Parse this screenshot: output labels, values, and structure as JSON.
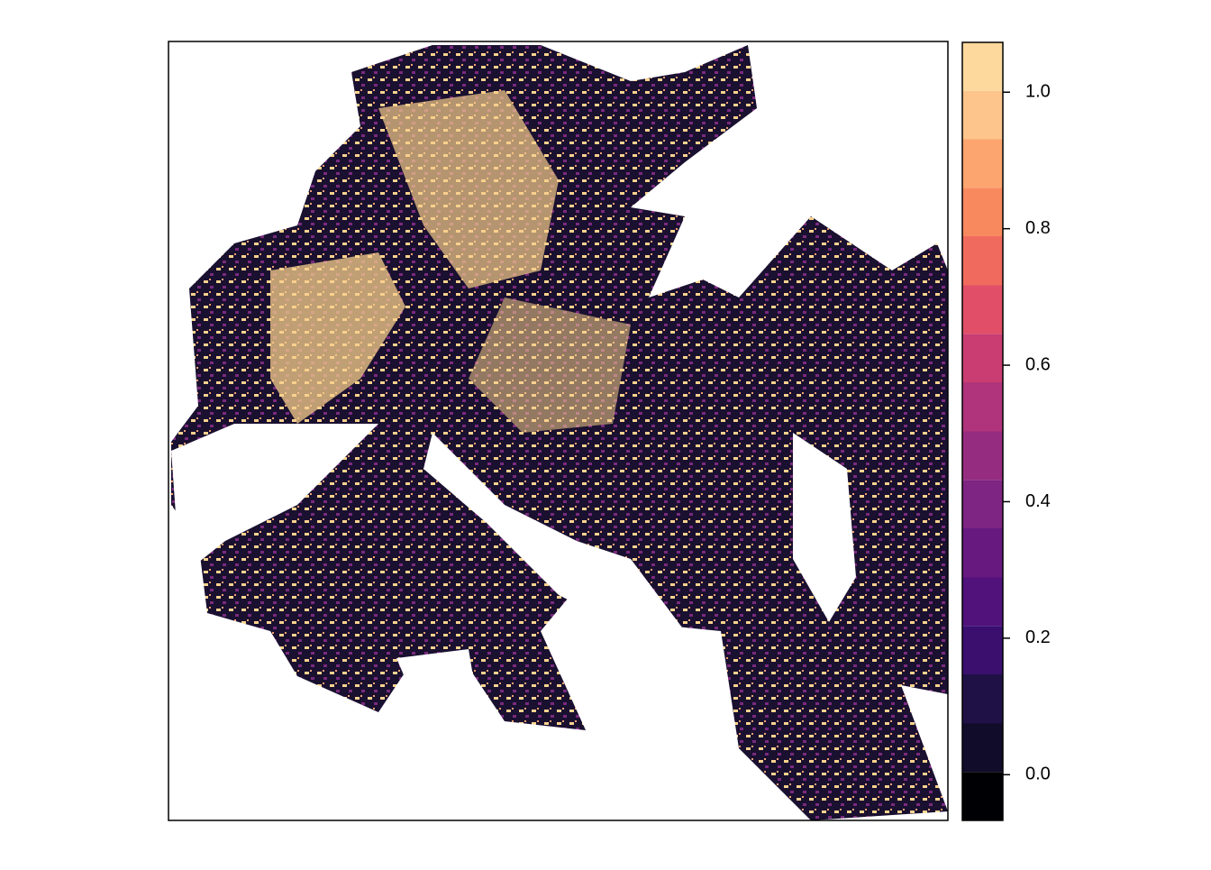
{
  "chart_data": {
    "type": "raster",
    "colorbar": {
      "breaks": [
        -0.067,
        0.004,
        0.075,
        0.147,
        0.218,
        0.289,
        0.361,
        0.432,
        0.503,
        0.575,
        0.646,
        0.717,
        0.789,
        0.86,
        0.931,
        1.002,
        1.073
      ],
      "colors": [
        "#000004",
        "#100c2a",
        "#1f1146",
        "#3a0f6e",
        "#51127c",
        "#67197f",
        "#7e2482",
        "#962c80",
        "#b0347b",
        "#c93d72",
        "#e04f67",
        "#f06b5d",
        "#f8895f",
        "#fca56e",
        "#fdc58c",
        "#fdd99e",
        "#fcfdbf"
      ]
    },
    "ylim": [
      -0.067,
      1.073
    ],
    "yticks": [
      {
        "value": 0,
        "label": "0.0"
      },
      {
        "value": 0.2,
        "label": "0.2"
      },
      {
        "value": 0.4,
        "label": "0.4"
      },
      {
        "value": 0.6,
        "label": "0.6"
      },
      {
        "value": 0.8,
        "label": "0.8"
      },
      {
        "value": 1,
        "label": "1.0"
      }
    ]
  }
}
